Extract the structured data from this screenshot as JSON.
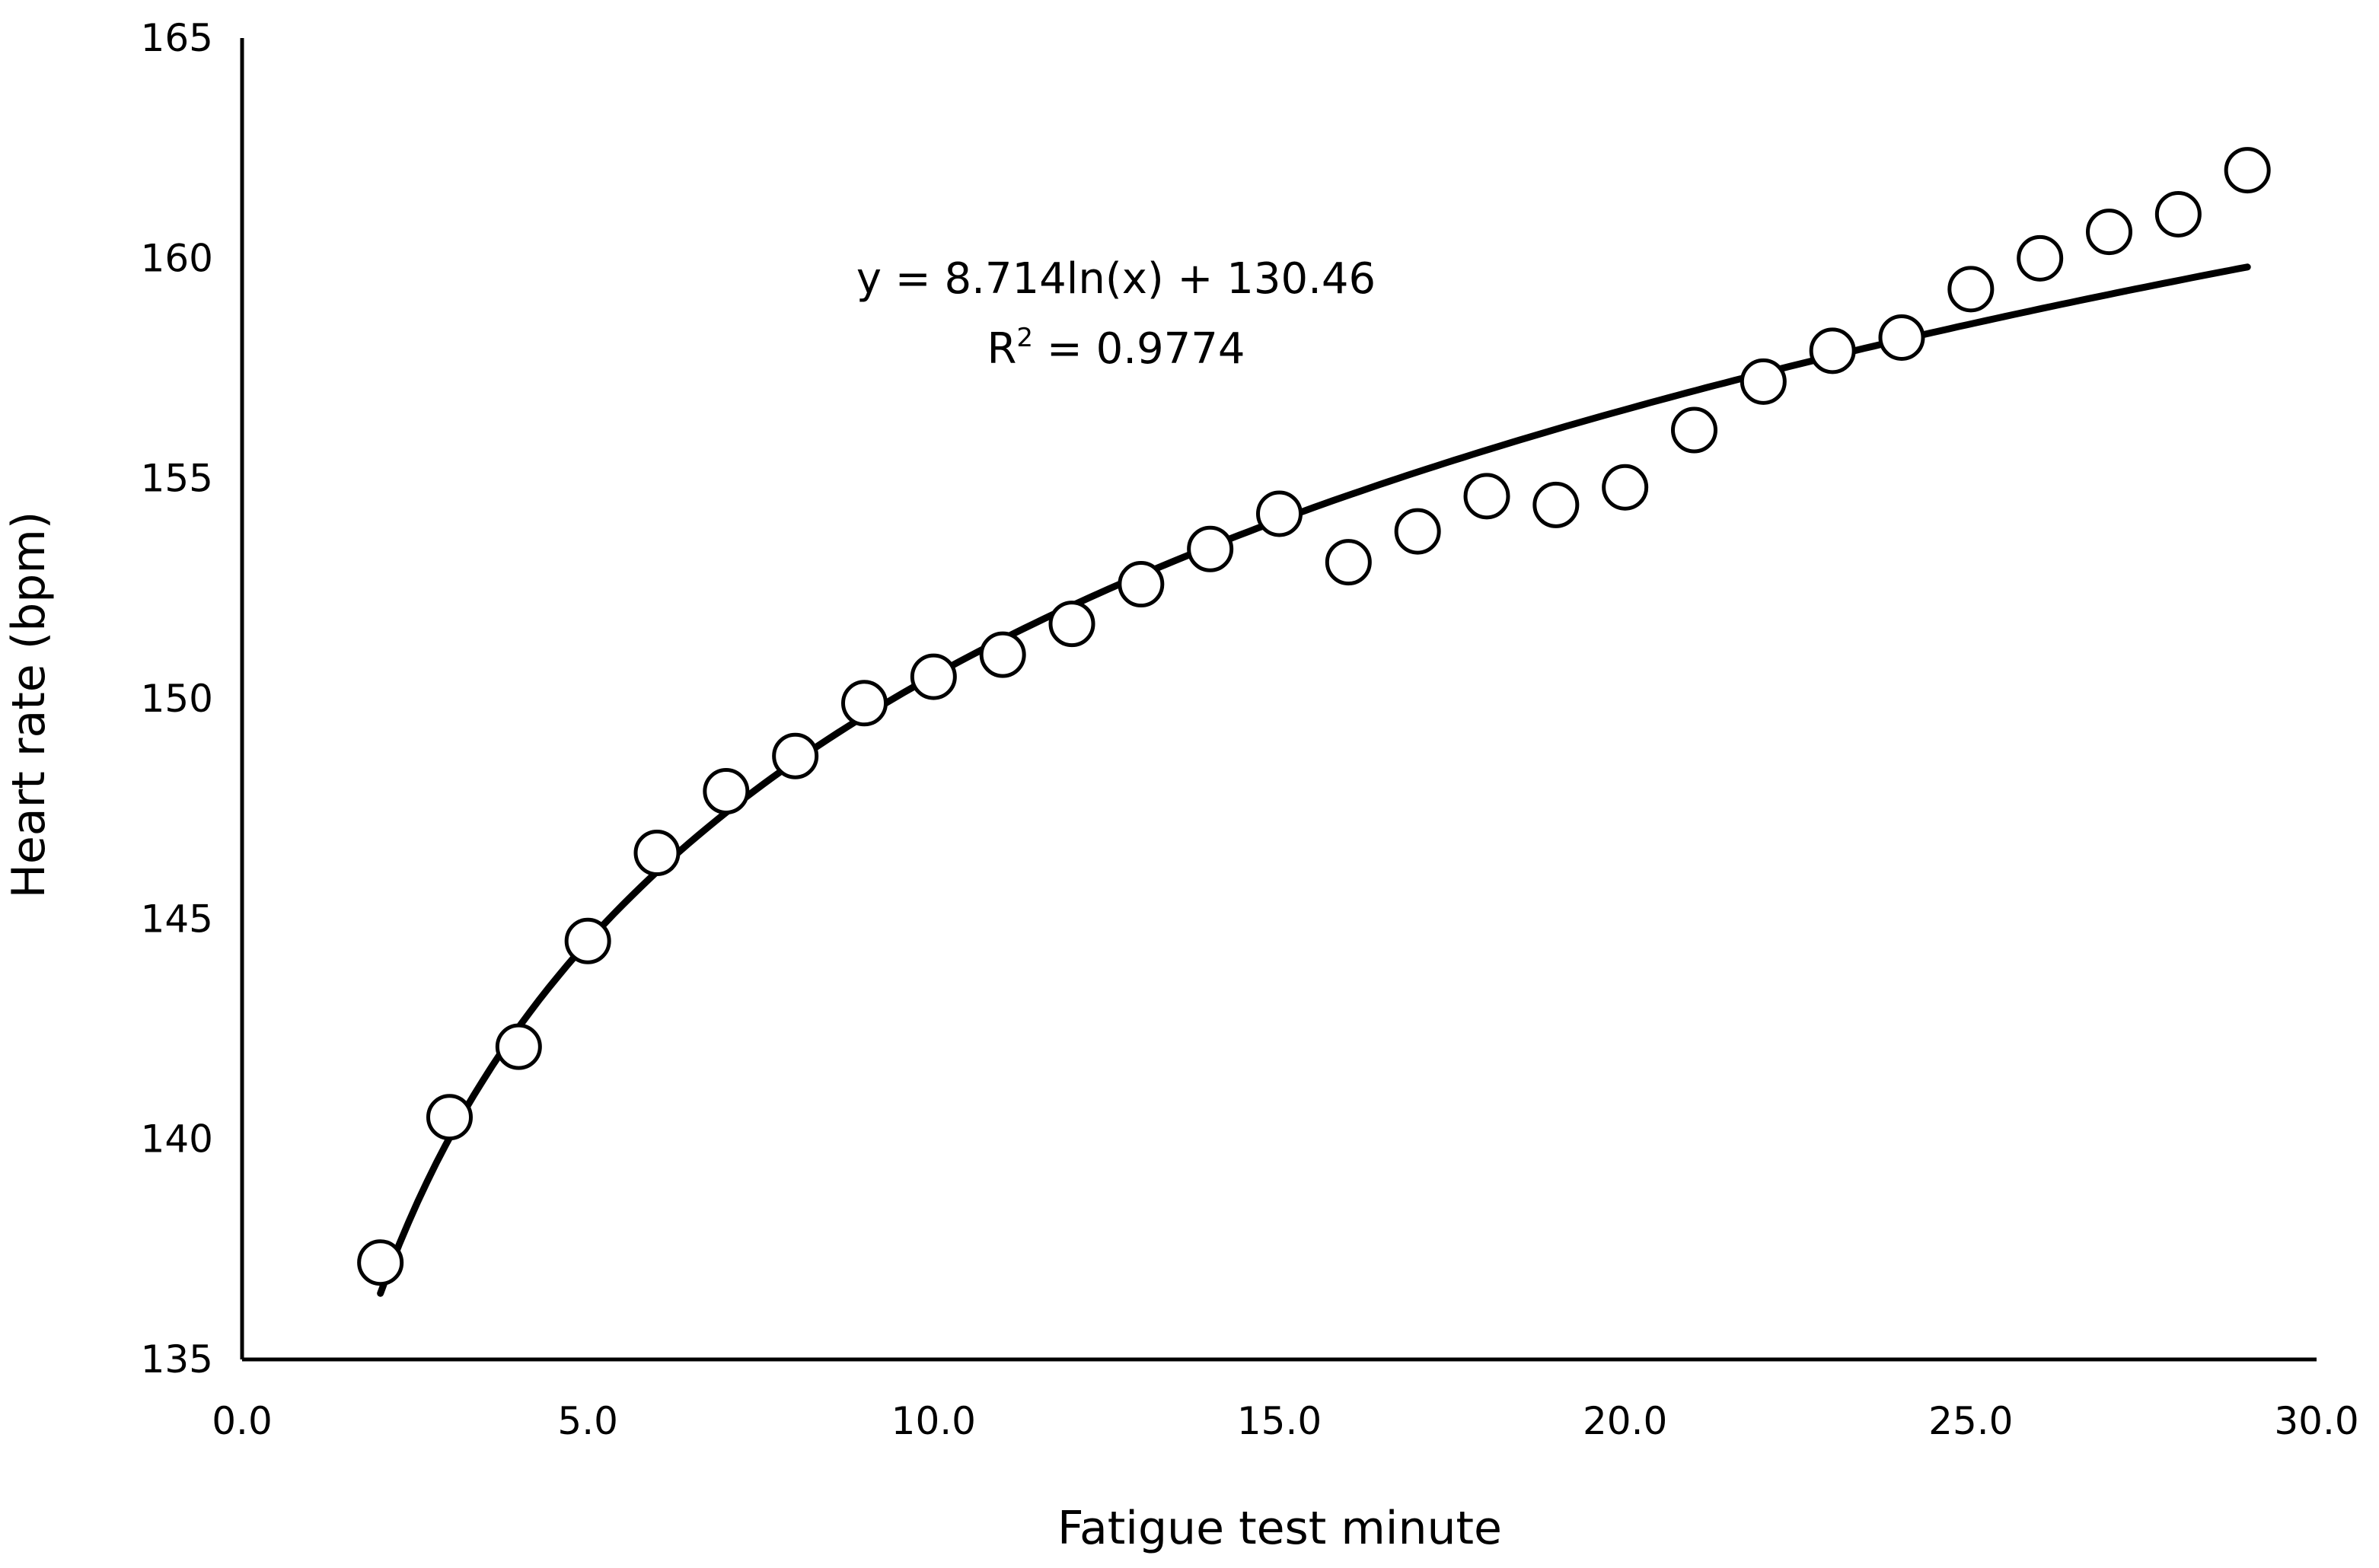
{
  "chart_data": {
    "type": "scatter",
    "title": "",
    "xlabel": "Fatigue test minute",
    "ylabel": "Heart rate (bpm)",
    "xlim": [
      0,
      30
    ],
    "ylim": [
      135,
      165
    ],
    "x_ticks": [
      "0.0",
      "5.0",
      "10.0",
      "15.0",
      "20.0",
      "25.0",
      "30.0"
    ],
    "y_ticks": [
      "135",
      "140",
      "145",
      "150",
      "155",
      "160",
      "165"
    ],
    "grid": false,
    "legend": "none",
    "series": [
      {
        "marker": "open-circle",
        "x": [
          2,
          3,
          4,
          5,
          6,
          7,
          8,
          9,
          10,
          11,
          12,
          13,
          14,
          15,
          16,
          17,
          18,
          19,
          20,
          21,
          22,
          23,
          24,
          25,
          26,
          27,
          28,
          29
        ],
        "y": [
          137.2,
          140.5,
          142.1,
          144.5,
          146.5,
          147.9,
          148.7,
          149.9,
          150.5,
          151.0,
          151.7,
          152.6,
          153.4,
          154.2,
          153.1,
          153.8,
          154.6,
          154.4,
          154.8,
          156.1,
          157.2,
          157.9,
          158.2,
          159.3,
          160.0,
          160.6,
          161.0,
          162.0
        ]
      }
    ],
    "trendline": {
      "type": "logarithmic",
      "a": 8.714,
      "b": 130.46,
      "x_range": [
        2,
        29
      ],
      "equation": "y = 8.714ln(x) + 130.46",
      "r_squared_prefix": "R",
      "r_squared_exponent": "2",
      "r_squared_value": " = 0.9774"
    },
    "colors": {
      "marker": "#000000",
      "line": "#000000",
      "axis": "#000000"
    }
  }
}
